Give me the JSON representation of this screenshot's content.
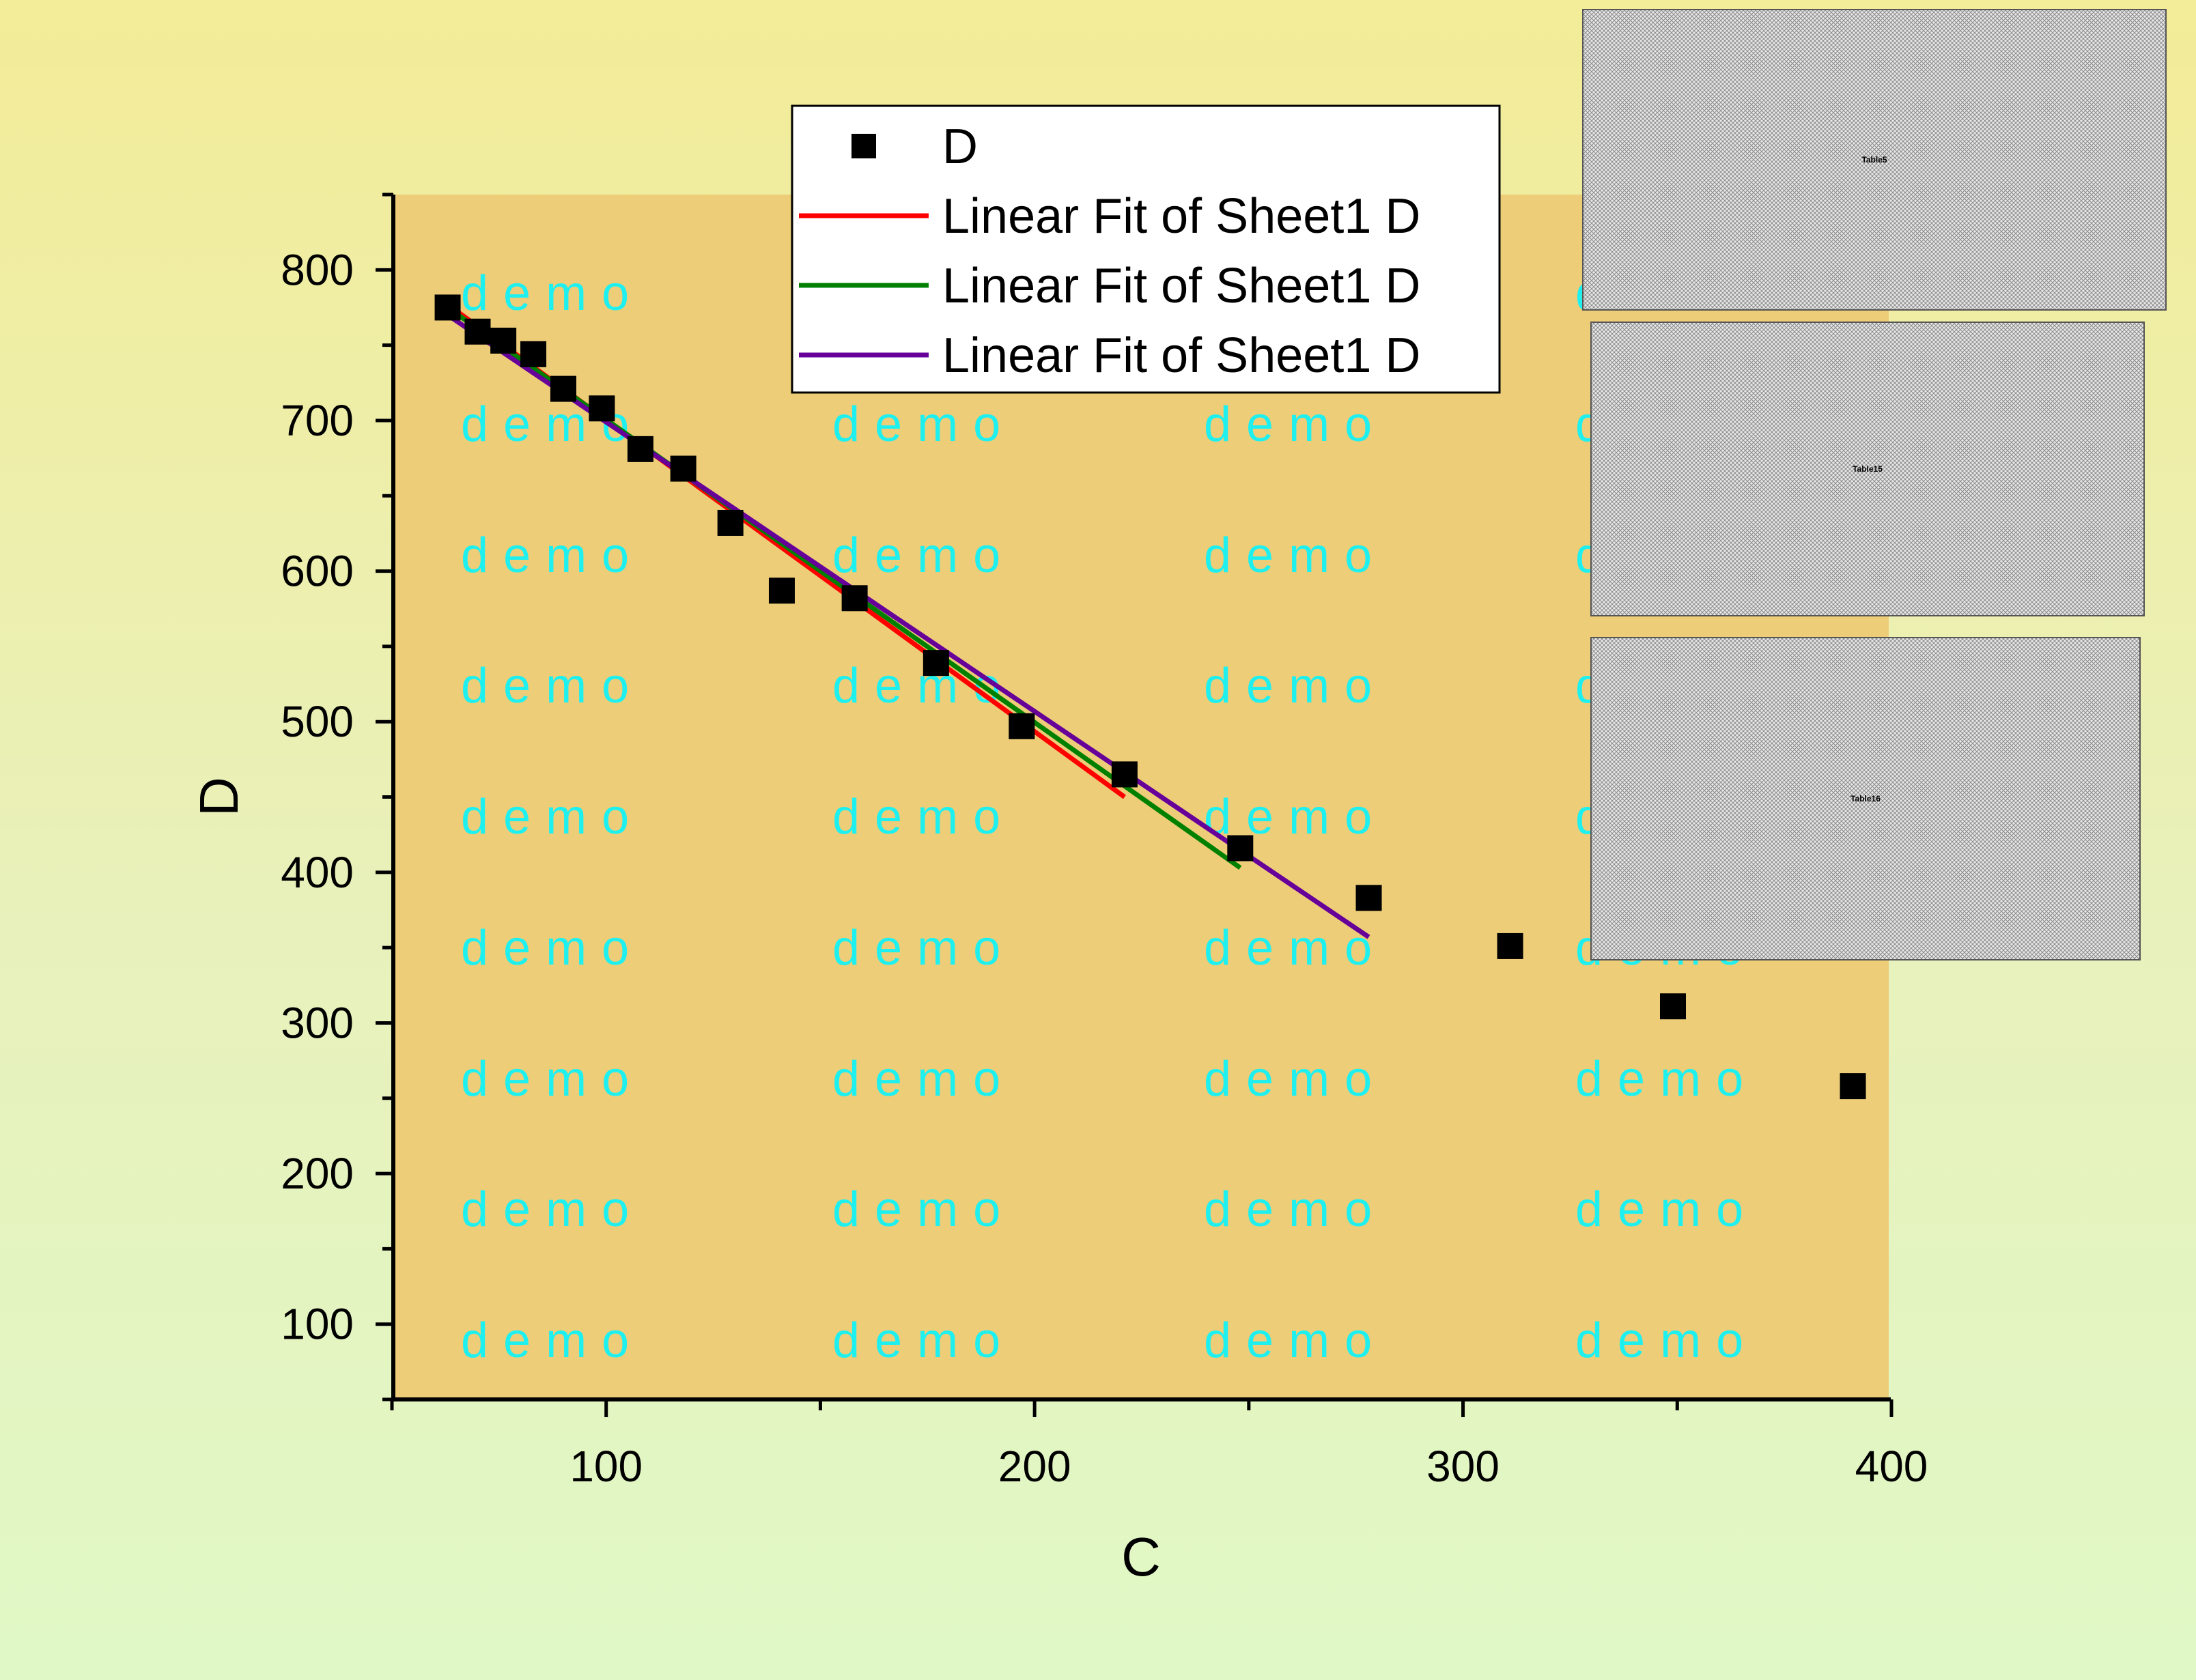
{
  "chart_data": {
    "type": "scatter",
    "xlabel": "C",
    "ylabel": "D",
    "xlim": [
      50,
      400
    ],
    "ylim": [
      50,
      850
    ],
    "x_ticks": [
      100,
      200,
      300,
      400
    ],
    "y_ticks": [
      100,
      200,
      300,
      400,
      500,
      600,
      700,
      800
    ],
    "legend_position": "top-center",
    "grid": false,
    "colors": {
      "plot_background": "#edcd78",
      "markers": "#000000",
      "fit1": "#ff0000",
      "fit2": "#008000",
      "fit3": "#660099",
      "watermark": "#1ef0f0"
    },
    "series": [
      {
        "name": "D",
        "kind": "scatter",
        "marker": "square",
        "x": [
          63,
          70,
          76,
          83,
          90,
          99,
          108,
          118,
          129,
          141,
          158,
          177,
          197,
          221,
          248,
          278,
          311,
          349,
          391
        ],
        "y": [
          775,
          759,
          753,
          744,
          721,
          708,
          681,
          668,
          632,
          587,
          582,
          539,
          497,
          465,
          416,
          383,
          351,
          311,
          258
        ]
      },
      {
        "name": "Linear Fit of Sheet1 D",
        "kind": "line",
        "color": "#ff0000",
        "x": [
          63,
          221
        ],
        "y": [
          777,
          450
        ]
      },
      {
        "name": "Linear Fit of Sheet1 D",
        "kind": "line",
        "color": "#008000",
        "x": [
          63,
          248
        ],
        "y": [
          775,
          403
        ]
      },
      {
        "name": "Linear Fit of Sheet1 D",
        "kind": "line",
        "color": "#660099",
        "x": [
          63,
          278
        ],
        "y": [
          770,
          357
        ]
      }
    ],
    "watermark_text": "demo",
    "embedded_tables": [
      "Table5",
      "Table15",
      "Table16"
    ]
  }
}
